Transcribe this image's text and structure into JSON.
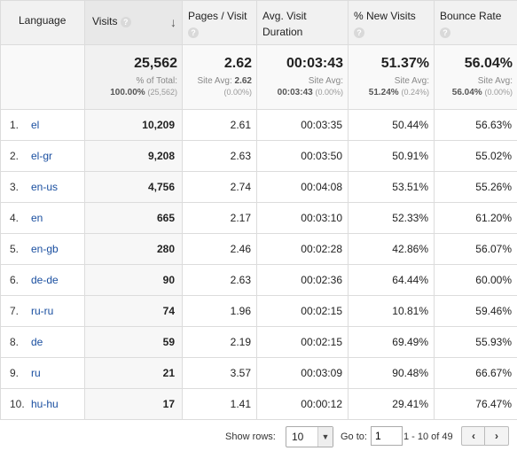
{
  "headers": {
    "language": "Language",
    "visits": "Visits",
    "pages_per_visit": "Pages / Visit",
    "avg_visit_duration": "Avg. Visit Duration",
    "new_visits": "% New Visits",
    "bounce_rate": "Bounce Rate",
    "help": "?",
    "sort_arrow": "↓"
  },
  "summary": {
    "visits": "25,562",
    "visits_label": "% of Total:",
    "visits_pct": "100.00%",
    "visits_paren": "(25,562)",
    "pages": "2.62",
    "pages_label": "Site Avg:",
    "pages_avg": "2.62",
    "pages_paren": "(0.00%)",
    "duration": "00:03:43",
    "duration_label": "Site Avg:",
    "duration_avg": "00:03:43",
    "duration_paren": "(0.00%)",
    "new_visits": "51.37%",
    "new_visits_label": "Site Avg:",
    "new_visits_avg": "51.24%",
    "new_visits_paren": "(0.24%)",
    "bounce": "56.04%",
    "bounce_label": "Site Avg:",
    "bounce_avg": "56.04%",
    "bounce_paren": "(0.00%)"
  },
  "rows": [
    {
      "idx": "1.",
      "lang": "el",
      "visits": "10,209",
      "pages": "2.61",
      "duration": "00:03:35",
      "new": "50.44%",
      "bounce": "56.63%"
    },
    {
      "idx": "2.",
      "lang": "el-gr",
      "visits": "9,208",
      "pages": "2.63",
      "duration": "00:03:50",
      "new": "50.91%",
      "bounce": "55.02%"
    },
    {
      "idx": "3.",
      "lang": "en-us",
      "visits": "4,756",
      "pages": "2.74",
      "duration": "00:04:08",
      "new": "53.51%",
      "bounce": "55.26%"
    },
    {
      "idx": "4.",
      "lang": "en",
      "visits": "665",
      "pages": "2.17",
      "duration": "00:03:10",
      "new": "52.33%",
      "bounce": "61.20%"
    },
    {
      "idx": "5.",
      "lang": "en-gb",
      "visits": "280",
      "pages": "2.46",
      "duration": "00:02:28",
      "new": "42.86%",
      "bounce": "56.07%"
    },
    {
      "idx": "6.",
      "lang": "de-de",
      "visits": "90",
      "pages": "2.63",
      "duration": "00:02:36",
      "new": "64.44%",
      "bounce": "60.00%"
    },
    {
      "idx": "7.",
      "lang": "ru-ru",
      "visits": "74",
      "pages": "1.96",
      "duration": "00:02:15",
      "new": "10.81%",
      "bounce": "59.46%"
    },
    {
      "idx": "8.",
      "lang": "de",
      "visits": "59",
      "pages": "2.19",
      "duration": "00:02:15",
      "new": "69.49%",
      "bounce": "55.93%"
    },
    {
      "idx": "9.",
      "lang": "ru",
      "visits": "21",
      "pages": "3.57",
      "duration": "00:03:09",
      "new": "90.48%",
      "bounce": "66.67%"
    },
    {
      "idx": "10.",
      "lang": "hu-hu",
      "visits": "17",
      "pages": "1.41",
      "duration": "00:00:12",
      "new": "29.41%",
      "bounce": "76.47%"
    }
  ],
  "footer": {
    "show_rows_label": "Show rows:",
    "show_rows_value": "10",
    "goto_label": "Go to:",
    "goto_value": "1",
    "range": "1 - 10 of 49",
    "prev": "‹",
    "next": "›"
  },
  "colors": {
    "link": "#1a4fa0",
    "header_bg": "#f1f1f1"
  }
}
